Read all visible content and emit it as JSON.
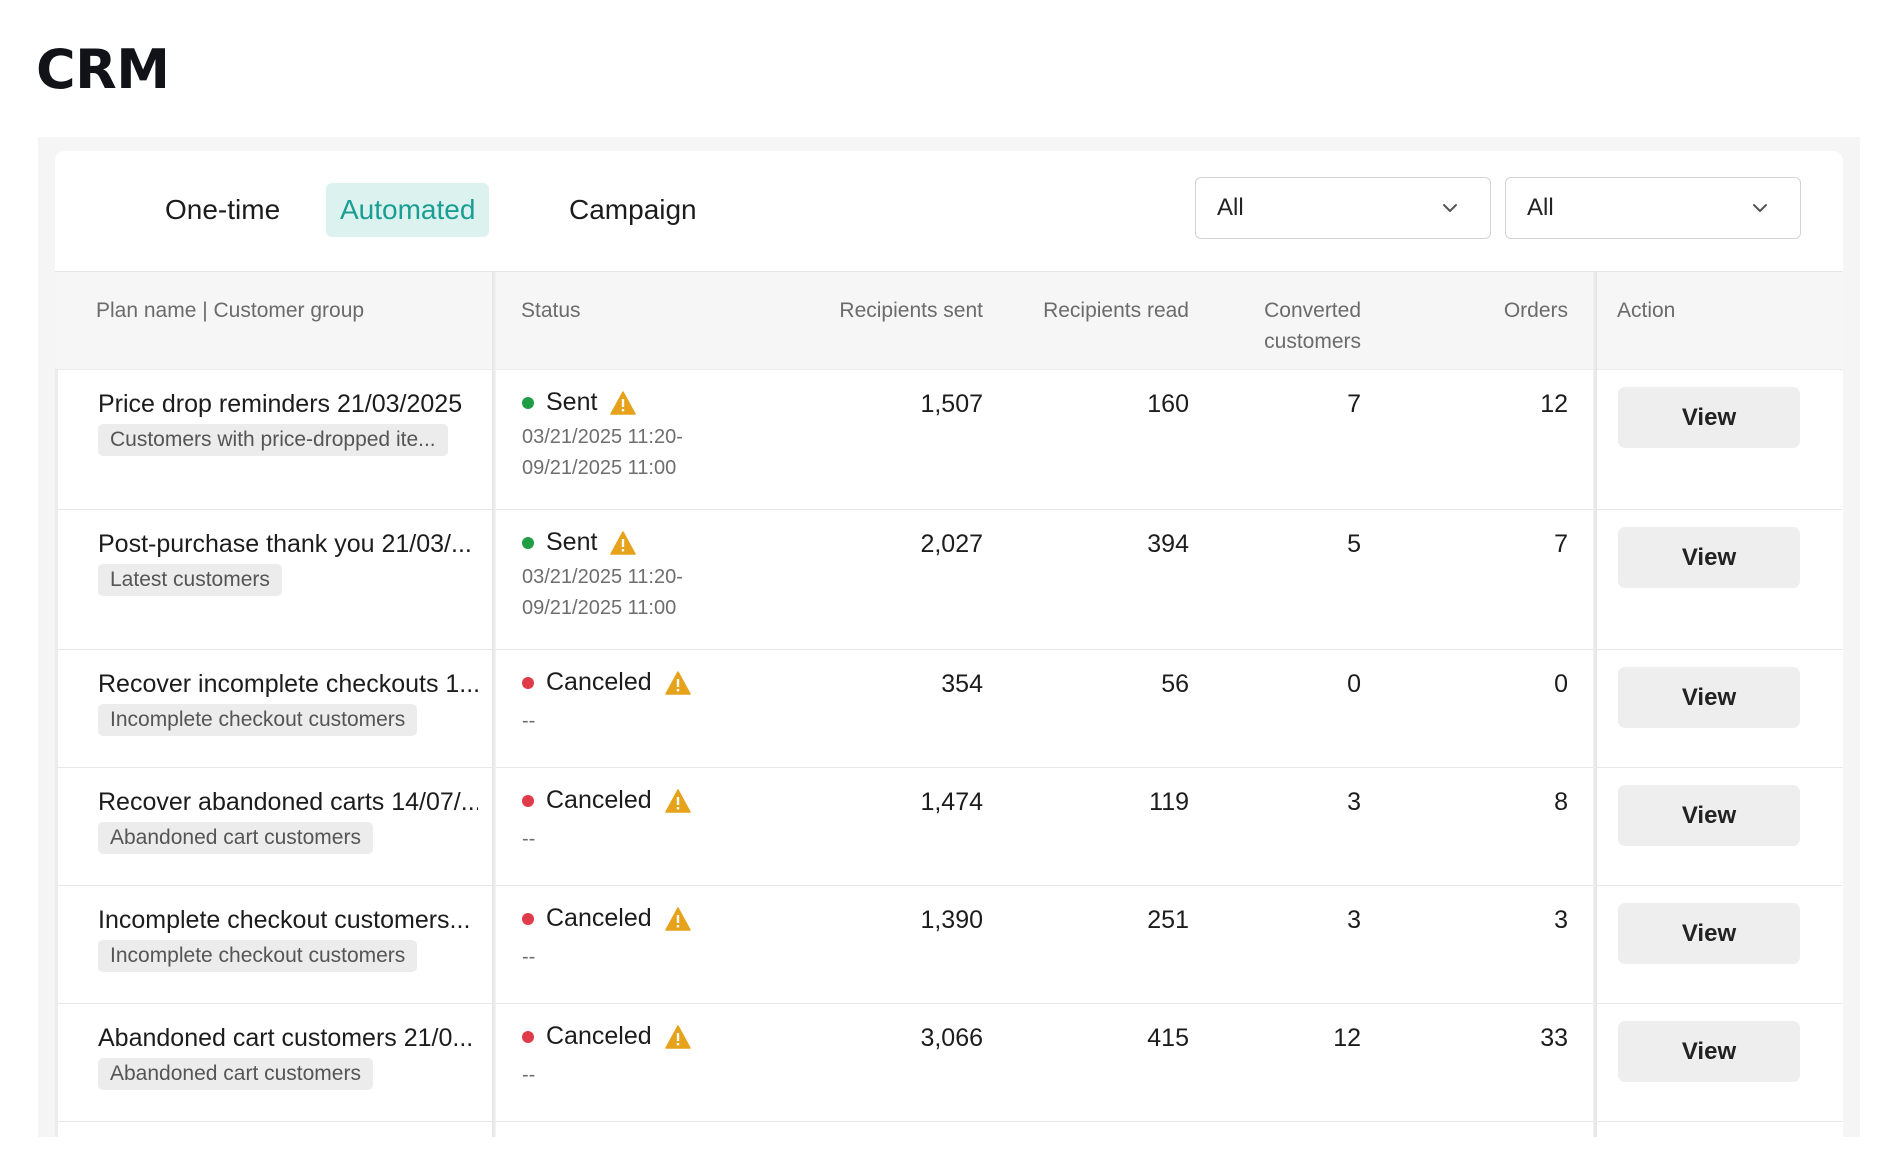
{
  "page": {
    "title": "CRM"
  },
  "tabs": [
    {
      "label": "One-time",
      "active": false
    },
    {
      "label": "Automated",
      "active": true
    },
    {
      "label": "Campaign",
      "active": false
    }
  ],
  "filters": [
    {
      "value": "All"
    },
    {
      "value": "All"
    }
  ],
  "columns": {
    "plan": "Plan name | Customer group",
    "status": "Status",
    "sent": "Recipients sent",
    "read": "Recipients read",
    "converted_line1": "Converted",
    "converted_line2": "customers",
    "orders": "Orders",
    "action": "Action"
  },
  "rows": [
    {
      "plan": "Price drop reminders 21/03/2025",
      "group": "Customers with price-dropped ite...",
      "status": "Sent",
      "status_color": "green",
      "time1": "03/21/2025 11:20-",
      "time2": "09/21/2025 11:00",
      "sent": "1,507",
      "read": "160",
      "converted": "7",
      "orders": "12",
      "action": "View"
    },
    {
      "plan": "Post-purchase thank you 21/03/...",
      "group": "Latest customers",
      "status": "Sent",
      "status_color": "green",
      "time1": "03/21/2025 11:20-",
      "time2": "09/21/2025 11:00",
      "sent": "2,027",
      "read": "394",
      "converted": "5",
      "orders": "7",
      "action": "View"
    },
    {
      "plan": "Recover incomplete checkouts 1...",
      "group": "Incomplete checkout customers",
      "status": "Canceled",
      "status_color": "red",
      "time1": "--",
      "time2": "",
      "sent": "354",
      "read": "56",
      "converted": "0",
      "orders": "0",
      "action": "View"
    },
    {
      "plan": "Recover abandoned carts 14/07/...",
      "group": "Abandoned cart customers",
      "status": "Canceled",
      "status_color": "red",
      "time1": "--",
      "time2": "",
      "sent": "1,474",
      "read": "119",
      "converted": "3",
      "orders": "8",
      "action": "View"
    },
    {
      "plan": "Incomplete checkout customers...",
      "group": "Incomplete checkout customers",
      "status": "Canceled",
      "status_color": "red",
      "time1": "--",
      "time2": "",
      "sent": "1,390",
      "read": "251",
      "converted": "3",
      "orders": "3",
      "action": "View"
    },
    {
      "plan": "Abandoned cart customers 21/0...",
      "group": "Abandoned cart customers",
      "status": "Canceled",
      "status_color": "red",
      "time1": "--",
      "time2": "",
      "sent": "3,066",
      "read": "415",
      "converted": "12",
      "orders": "33",
      "action": "View"
    }
  ],
  "colors": {
    "accent": "#1a9d93",
    "accent_bg": "#dbf2ef",
    "sent": "#1f9d45",
    "canceled": "#e03b48",
    "warning": "#e5a21a"
  },
  "icons": {
    "status_warning": "warning-triangle-icon",
    "select_chevron": "chevron-down-icon"
  }
}
